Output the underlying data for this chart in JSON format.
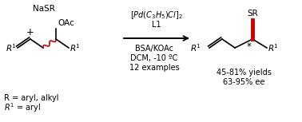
{
  "bg_color": "#ffffff",
  "black": "#000000",
  "red": "#cc0000",
  "figsize": [
    3.78,
    1.53
  ],
  "dpi": 100,
  "nasr": "NaSR",
  "plus": "+",
  "oac": "OAc",
  "reagent1": "$[Pd(C_3H_5)Cl]_2$",
  "reagent2": "L1",
  "reagent3": "BSA/KOAc",
  "reagent4": "DCM, -10 ºC",
  "reagent5": "12 examples",
  "product_sr": "SR",
  "yield_text": "45-81% yields",
  "ee_text": "63-95% ee",
  "r_def": "R = aryl, alkyl",
  "r1_def": "$R^1$ = aryl",
  "xlim": [
    0,
    378
  ],
  "ylim": [
    0,
    153
  ]
}
